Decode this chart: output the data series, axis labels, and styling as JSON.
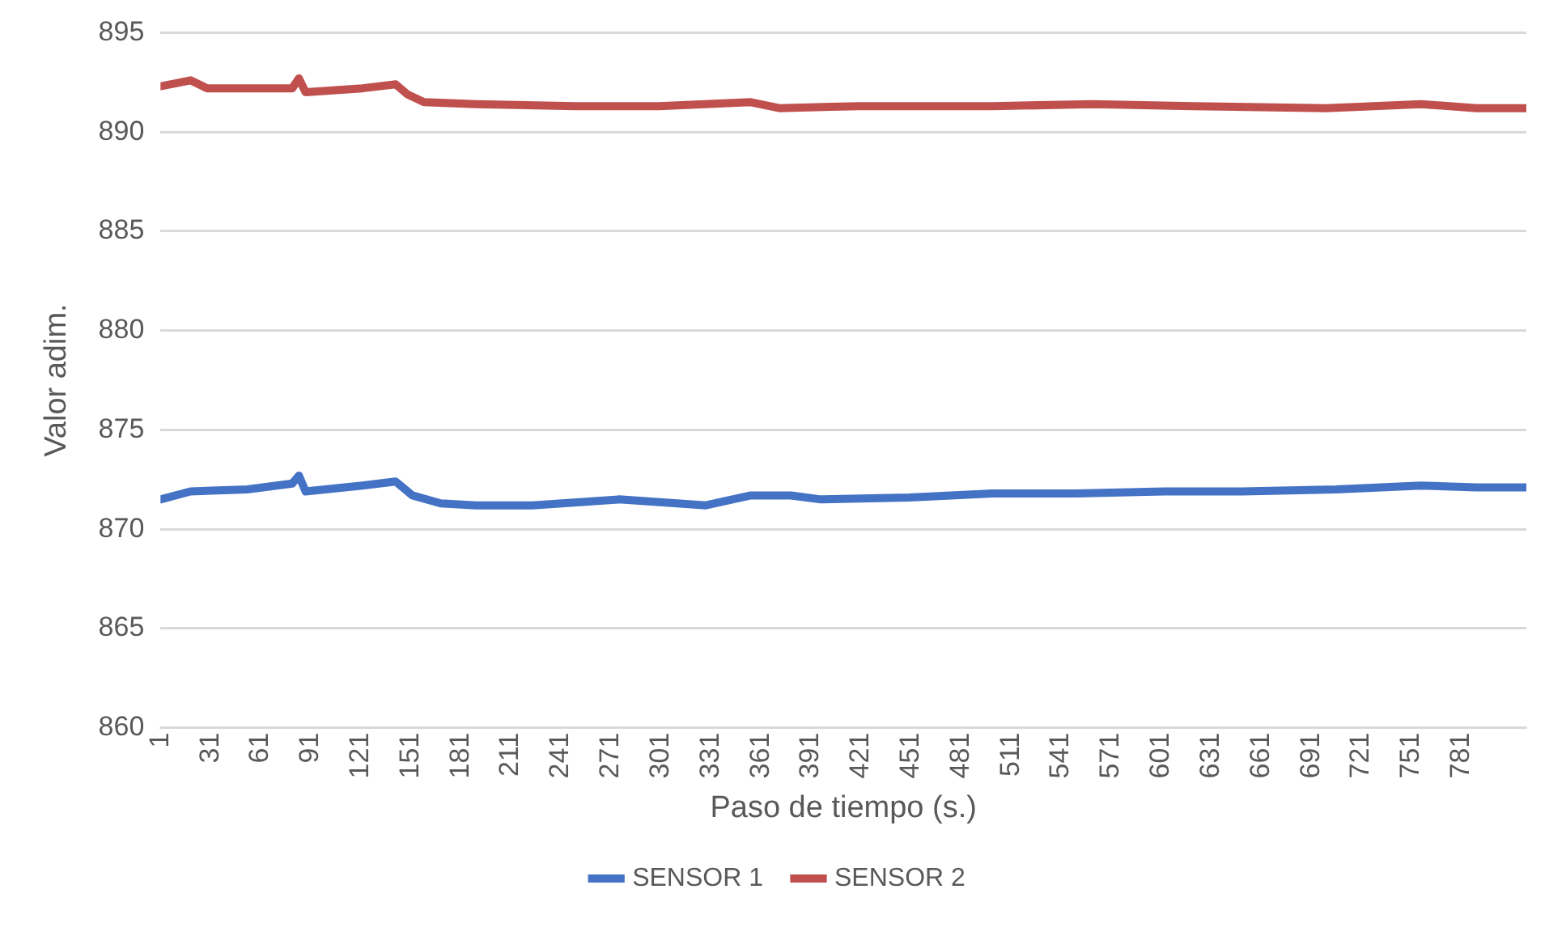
{
  "chart_data": {
    "type": "line",
    "xlabel": "Paso de tiempo (s.)",
    "ylabel": "Valor adim.",
    "xlim": [
      1,
      820
    ],
    "xticks": [
      1,
      31,
      61,
      91,
      121,
      151,
      181,
      211,
      241,
      271,
      301,
      331,
      361,
      391,
      421,
      451,
      481,
      511,
      541,
      571,
      601,
      631,
      661,
      691,
      721,
      751,
      781
    ],
    "ylim": [
      860,
      895
    ],
    "yticks": [
      860,
      865,
      870,
      875,
      880,
      885,
      890,
      895
    ],
    "grid": "y",
    "legend": "bottom",
    "marker": "none",
    "line_style": "solid",
    "series": [
      {
        "name": "SENSOR 1",
        "color": "#4472c4",
        "x": [
          1,
          19,
          53,
          80,
          84,
          88,
          122,
          142,
          152,
          169,
          190,
          224,
          276,
          328,
          355,
          379,
          397,
          450,
          500,
          550,
          603,
          650,
          706,
          757,
          790,
          820
        ],
        "values": [
          871.5,
          871.9,
          872.0,
          872.3,
          872.7,
          871.9,
          872.2,
          872.4,
          871.7,
          871.3,
          871.2,
          871.2,
          871.5,
          871.2,
          871.7,
          871.7,
          871.5,
          871.6,
          871.8,
          871.8,
          871.9,
          871.9,
          872.0,
          872.2,
          872.1,
          872.1
        ]
      },
      {
        "name": "SENSOR 2",
        "color": "#c0504d",
        "x": [
          1,
          19,
          29,
          80,
          84,
          88,
          122,
          142,
          149,
          159,
          190,
          250,
          300,
          355,
          372,
          420,
          500,
          560,
          620,
          700,
          757,
          790,
          820
        ],
        "values": [
          892.3,
          892.6,
          892.2,
          892.2,
          892.7,
          892.0,
          892.2,
          892.4,
          891.9,
          891.5,
          891.4,
          891.3,
          891.3,
          891.5,
          891.2,
          891.3,
          891.3,
          891.4,
          891.3,
          891.2,
          891.4,
          891.2,
          891.2
        ]
      }
    ]
  }
}
